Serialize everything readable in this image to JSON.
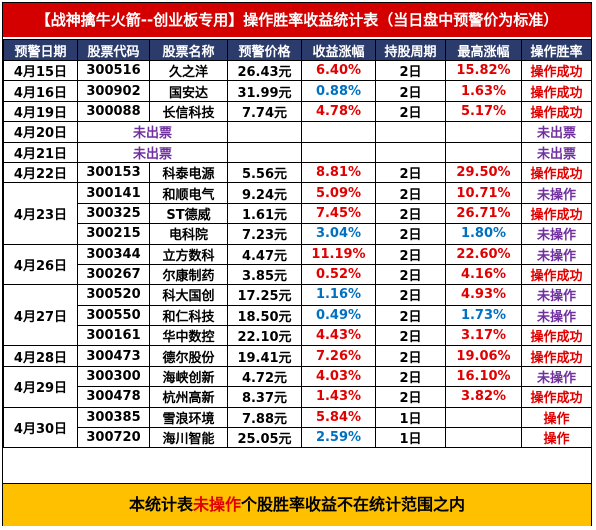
{
  "title": "【战神擒牛火箭--创业板专用】操作胜率收益统计表（当日盘中预警价为标准）",
  "headers": [
    "预警日期",
    "股票代码",
    "股票名称",
    "预警价格",
    "收益涨幅",
    "持股周期",
    "最高涨幅",
    "操作胜率"
  ],
  "no_signal_label": "未出票",
  "rows": [
    {
      "date": "4月15日",
      "code": "300516",
      "name": "久之洋",
      "price": "26.43元",
      "gain": "6.40%",
      "gain_color": "red",
      "period": "2日",
      "max": "15.82%",
      "max_color": "red",
      "result": "操作成功",
      "result_color": "red"
    },
    {
      "date": "4月16日",
      "code": "300902",
      "name": "国安达",
      "price": "31.99元",
      "gain": "0.88%",
      "gain_color": "blue",
      "period": "2日",
      "max": "1.63%",
      "max_color": "red",
      "result": "操作成功",
      "result_color": "red"
    },
    {
      "date": "4月19日",
      "code": "300088",
      "name": "长信科技",
      "price": "7.74元",
      "gain": "4.78%",
      "gain_color": "red",
      "period": "2日",
      "max": "5.17%",
      "max_color": "red",
      "result": "操作成功",
      "result_color": "red"
    },
    {
      "date": "4月20日",
      "nosignal": true,
      "result": "未出票",
      "result_color": "purple"
    },
    {
      "date": "4月21日",
      "nosignal": true,
      "result": "未出票",
      "result_color": "purple"
    },
    {
      "date": "4月22日",
      "code": "300153",
      "name": "科泰电源",
      "price": "5.56元",
      "gain": "8.81%",
      "gain_color": "red",
      "period": "2日",
      "max": "29.50%",
      "max_color": "red",
      "result": "操作成功",
      "result_color": "red"
    },
    {
      "date": "4月23日",
      "code": "300141",
      "name": "和顺电气",
      "price": "9.24元",
      "gain": "5.09%",
      "gain_color": "red",
      "period": "2日",
      "max": "10.71%",
      "max_color": "red",
      "result": "未操作",
      "result_color": "purple"
    },
    {
      "date": "",
      "code": "300325",
      "name": "ST德威",
      "price": "1.61元",
      "gain": "7.45%",
      "gain_color": "red",
      "period": "2日",
      "max": "26.71%",
      "max_color": "red",
      "result": "操作成功",
      "result_color": "red"
    },
    {
      "date": "",
      "code": "300215",
      "name": "电科院",
      "price": "7.23元",
      "gain": "3.04%",
      "gain_color": "blue",
      "period": "2日",
      "max": "1.80%",
      "max_color": "blue",
      "result": "未操作",
      "result_color": "purple"
    },
    {
      "date": "4月26日",
      "code": "300344",
      "name": "立方数科",
      "price": "4.47元",
      "gain": "11.19%",
      "gain_color": "red",
      "period": "2日",
      "max": "22.60%",
      "max_color": "red",
      "result": "未操作",
      "result_color": "purple"
    },
    {
      "date": "",
      "code": "300267",
      "name": "尔康制药",
      "price": "3.85元",
      "gain": "0.52%",
      "gain_color": "red",
      "period": "2日",
      "max": "4.16%",
      "max_color": "red",
      "result": "操作成功",
      "result_color": "red"
    },
    {
      "date": "4月27日",
      "code": "300520",
      "name": "科大国创",
      "price": "17.25元",
      "gain": "1.16%",
      "gain_color": "blue",
      "period": "2日",
      "max": "4.93%",
      "max_color": "red",
      "result": "未操作",
      "result_color": "purple"
    },
    {
      "date": "",
      "code": "300550",
      "name": "和仁科技",
      "price": "18.50元",
      "gain": "0.49%",
      "gain_color": "blue",
      "period": "2日",
      "max": "1.73%",
      "max_color": "blue",
      "result": "未操作",
      "result_color": "purple"
    },
    {
      "date": "",
      "code": "300161",
      "name": "华中数控",
      "price": "22.10元",
      "gain": "4.43%",
      "gain_color": "red",
      "period": "2日",
      "max": "3.17%",
      "max_color": "red",
      "result": "操作成功",
      "result_color": "red"
    },
    {
      "date": "4月28日",
      "code": "300473",
      "name": "德尔股份",
      "price": "19.41元",
      "gain": "7.26%",
      "gain_color": "red",
      "period": "2日",
      "max": "19.06%",
      "max_color": "red",
      "result": "操作成功",
      "result_color": "red"
    },
    {
      "date": "4月29日",
      "code": "300300",
      "name": "海峡创新",
      "price": "4.72元",
      "gain": "4.03%",
      "gain_color": "red",
      "period": "2日",
      "max": "16.10%",
      "max_color": "red",
      "result": "未操作",
      "result_color": "purple"
    },
    {
      "date": "",
      "code": "300478",
      "name": "杭州高新",
      "price": "8.37元",
      "gain": "1.43%",
      "gain_color": "red",
      "period": "2日",
      "max": "3.82%",
      "max_color": "red",
      "result": "操作成功",
      "result_color": "red"
    },
    {
      "date": "4月30日",
      "code": "300385",
      "name": "雪浪环境",
      "price": "7.88元",
      "gain": "5.84%",
      "gain_color": "red",
      "period": "1日",
      "max": "",
      "max_color": "red",
      "result": "操作",
      "result_color": "red"
    },
    {
      "date": "",
      "code": "300720",
      "name": "海川智能",
      "price": "25.05元",
      "gain": "2.59%",
      "gain_color": "blue",
      "period": "1日",
      "max": "",
      "max_color": "red",
      "result": "操作",
      "result_color": "red"
    }
  ],
  "date_spans": {
    "4月23日": 3,
    "4月26日": 2,
    "4月27日": 3,
    "4月29日": 2,
    "4月30日": 2
  },
  "footer": {
    "prefix": "本统计表",
    "highlight": "未操作",
    "suffix": "个股胜率收益不在统计范围之内"
  }
}
